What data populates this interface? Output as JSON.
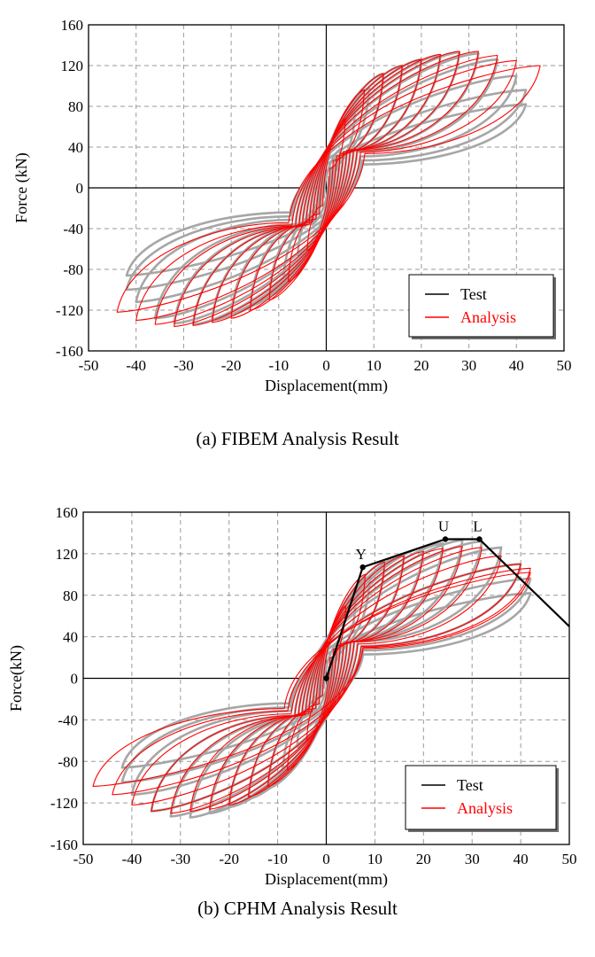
{
  "chart_data": [
    {
      "type": "line",
      "caption": "(a) FIBEM Analysis Result",
      "xlabel": "Displacement(mm)",
      "ylabel": "Force (kN)",
      "xlim": [
        -50,
        50
      ],
      "ylim": [
        -160,
        160
      ],
      "xticks": [
        -50,
        -40,
        -30,
        -20,
        -10,
        0,
        10,
        20,
        30,
        40,
        50
      ],
      "yticks": [
        160,
        120,
        80,
        40,
        0,
        -40,
        -80,
        -120,
        -160
      ],
      "grid": true,
      "legend_position": "bottom-right",
      "legend": [
        {
          "label": "Test",
          "color": "#000000"
        },
        {
          "label": "Analysis",
          "color": "#ff0000"
        }
      ],
      "test_hysteresis": {
        "color": "#a6a6a6",
        "cycles": [
          {
            "dmax": 3,
            "fmax": 38,
            "dmin": -3,
            "fmin": -36
          },
          {
            "dmax": 6,
            "fmax": 72,
            "dmin": -6,
            "fmin": -66
          },
          {
            "dmax": 9,
            "fmax": 98,
            "dmin": -9,
            "fmin": -90
          },
          {
            "dmax": 12,
            "fmax": 112,
            "dmin": -12,
            "fmin": -106
          },
          {
            "dmax": 16,
            "fmax": 120,
            "dmin": -16,
            "fmin": -116
          },
          {
            "dmax": 20,
            "fmax": 126,
            "dmin": -20,
            "fmin": -124
          },
          {
            "dmax": 24,
            "fmax": 130,
            "dmin": -24,
            "fmin": -130
          },
          {
            "dmax": 28,
            "fmax": 133,
            "dmin": -28,
            "fmin": -134
          },
          {
            "dmax": 32,
            "fmax": 132,
            "dmin": -32,
            "fmin": -133
          },
          {
            "dmax": 36,
            "fmax": 126,
            "dmin": -36,
            "fmin": -128
          },
          {
            "dmax": 40,
            "fmax": 110,
            "dmin": -40,
            "fmin": -112
          },
          {
            "dmax": 42,
            "fmax": 96,
            "dmin": -42,
            "fmin": -100
          },
          {
            "dmax": 42,
            "fmax": 82,
            "dmin": -42,
            "fmin": -86
          }
        ]
      },
      "analysis_hysteresis": {
        "color": "#ff0000",
        "cycles": [
          {
            "dmax": 4,
            "fmax": 68,
            "dmin": -4,
            "fmin": -62
          },
          {
            "dmax": 8,
            "fmax": 96,
            "dmin": -8,
            "fmin": -92
          },
          {
            "dmax": 12,
            "fmax": 112,
            "dmin": -12,
            "fmin": -110
          },
          {
            "dmax": 16,
            "fmax": 120,
            "dmin": -16,
            "fmin": -120
          },
          {
            "dmax": 20,
            "fmax": 126,
            "dmin": -20,
            "fmin": -128
          },
          {
            "dmax": 24,
            "fmax": 131,
            "dmin": -24,
            "fmin": -132
          },
          {
            "dmax": 28,
            "fmax": 134,
            "dmin": -28,
            "fmin": -135
          },
          {
            "dmax": 32,
            "fmax": 134,
            "dmin": -32,
            "fmin": -136
          },
          {
            "dmax": 36,
            "fmax": 130,
            "dmin": -36,
            "fmin": -134
          },
          {
            "dmax": 40,
            "fmax": 125,
            "dmin": -40,
            "fmin": -130
          },
          {
            "dmax": 45,
            "fmax": 120,
            "dmin": -44,
            "fmin": -122
          }
        ]
      }
    },
    {
      "type": "line",
      "caption": "(b) CPHM Analysis Result",
      "xlabel": "Displacement(mm)",
      "ylabel": "Force(kN)",
      "xlim": [
        -50,
        50
      ],
      "ylim": [
        -160,
        160
      ],
      "xticks": [
        -50,
        -40,
        -30,
        -20,
        -10,
        0,
        10,
        20,
        30,
        40,
        50
      ],
      "yticks": [
        160,
        120,
        80,
        40,
        0,
        -40,
        -80,
        -120,
        -160
      ],
      "grid": true,
      "legend_position": "bottom-right",
      "legend": [
        {
          "label": "Test",
          "color": "#000000"
        },
        {
          "label": "Analysis",
          "color": "#ff0000"
        }
      ],
      "test_hysteresis": {
        "color": "#a6a6a6",
        "cycles": [
          {
            "dmax": 3,
            "fmax": 38,
            "dmin": -3,
            "fmin": -36
          },
          {
            "dmax": 6,
            "fmax": 72,
            "dmin": -6,
            "fmin": -66
          },
          {
            "dmax": 9,
            "fmax": 98,
            "dmin": -9,
            "fmin": -90
          },
          {
            "dmax": 12,
            "fmax": 112,
            "dmin": -12,
            "fmin": -106
          },
          {
            "dmax": 16,
            "fmax": 120,
            "dmin": -16,
            "fmin": -116
          },
          {
            "dmax": 20,
            "fmax": 126,
            "dmin": -20,
            "fmin": -124
          },
          {
            "dmax": 24,
            "fmax": 130,
            "dmin": -24,
            "fmin": -130
          },
          {
            "dmax": 28,
            "fmax": 133,
            "dmin": -28,
            "fmin": -134
          },
          {
            "dmax": 32,
            "fmax": 132,
            "dmin": -32,
            "fmin": -133
          },
          {
            "dmax": 36,
            "fmax": 126,
            "dmin": -36,
            "fmin": -128
          },
          {
            "dmax": 40,
            "fmax": 110,
            "dmin": -40,
            "fmin": -112
          },
          {
            "dmax": 42,
            "fmax": 96,
            "dmin": -42,
            "fmin": -100
          },
          {
            "dmax": 42,
            "fmax": 82,
            "dmin": -42,
            "fmin": -86
          }
        ]
      },
      "analysis_hysteresis": {
        "color": "#ff0000",
        "cycles": [
          {
            "dmax": 4,
            "fmax": 70,
            "dmin": -4,
            "fmin": -60
          },
          {
            "dmax": 8,
            "fmax": 100,
            "dmin": -8,
            "fmin": -88
          },
          {
            "dmax": 12,
            "fmax": 112,
            "dmin": -12,
            "fmin": -104
          },
          {
            "dmax": 16,
            "fmax": 118,
            "dmin": -16,
            "fmin": -114
          },
          {
            "dmax": 20,
            "fmax": 122,
            "dmin": -20,
            "fmin": -122
          },
          {
            "dmax": 24,
            "fmax": 125,
            "dmin": -24,
            "fmin": -126
          },
          {
            "dmax": 28,
            "fmax": 127,
            "dmin": -28,
            "fmin": -128
          },
          {
            "dmax": 32,
            "fmax": 126,
            "dmin": -32,
            "fmin": -130
          },
          {
            "dmax": 36,
            "fmax": 118,
            "dmin": -36,
            "fmin": -128
          },
          {
            "dmax": 40,
            "fmax": 110,
            "dmin": -40,
            "fmin": -122
          },
          {
            "dmax": 42,
            "fmax": 106,
            "dmin": -44,
            "fmin": -112
          },
          {
            "dmax": 42,
            "fmax": 102,
            "dmin": -48,
            "fmin": -104
          }
        ]
      },
      "envelope": {
        "color": "#000000",
        "points": [
          {
            "label": "",
            "x": 0,
            "y": 0
          },
          {
            "label": "Y",
            "x": 7.5,
            "y": 107
          },
          {
            "label": "U",
            "x": 24.5,
            "y": 134
          },
          {
            "label": "L",
            "x": 31.5,
            "y": 134
          },
          {
            "label": "",
            "x": 50,
            "y": 50
          }
        ]
      }
    }
  ]
}
